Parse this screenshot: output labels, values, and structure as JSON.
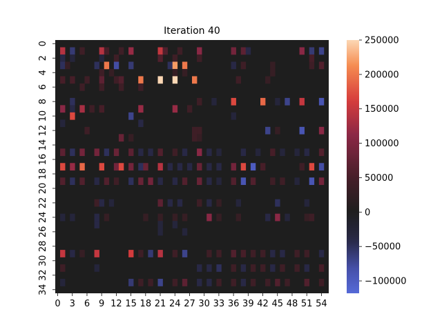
{
  "chart_data": {
    "type": "heatmap",
    "title": "Iteration 40",
    "n_rows": 35,
    "n_cols": 56,
    "xtick_labels": [
      "0",
      "3",
      "6",
      "9",
      "12",
      "15",
      "18",
      "21",
      "24",
      "27",
      "30",
      "33",
      "36",
      "39",
      "42",
      "45",
      "48",
      "51",
      "54"
    ],
    "xtick_indices": [
      0,
      3,
      6,
      9,
      12,
      15,
      18,
      21,
      24,
      27,
      30,
      33,
      36,
      39,
      42,
      45,
      48,
      51,
      54
    ],
    "ytick_labels": [
      "0",
      "2",
      "4",
      "6",
      "8",
      "10",
      "12",
      "14",
      "16",
      "18",
      "20",
      "22",
      "24",
      "26",
      "28",
      "30",
      "32",
      "34"
    ],
    "ytick_indices": [
      0,
      2,
      4,
      6,
      8,
      10,
      12,
      14,
      16,
      18,
      20,
      22,
      24,
      26,
      28,
      30,
      32,
      34
    ],
    "colorbar": {
      "min": -118000,
      "max": 250000,
      "center": 0,
      "colormap": "icefire",
      "tick_values": [
        -100000,
        -50000,
        0,
        50000,
        100000,
        150000,
        200000,
        250000
      ],
      "tick_labels": [
        "−100000",
        "−50000",
        "0",
        "50000",
        "100000",
        "150000",
        "200000",
        "250000"
      ]
    },
    "background_value": 0,
    "cells": [
      [
        1,
        1,
        140000
      ],
      [
        1,
        3,
        -60000
      ],
      [
        1,
        5,
        40000
      ],
      [
        1,
        9,
        140000
      ],
      [
        1,
        10,
        50000
      ],
      [
        1,
        13,
        40000
      ],
      [
        1,
        15,
        120000
      ],
      [
        1,
        21,
        150000
      ],
      [
        1,
        22,
        60000
      ],
      [
        1,
        25,
        40000
      ],
      [
        1,
        29,
        110000
      ],
      [
        1,
        36,
        90000
      ],
      [
        1,
        38,
        70000
      ],
      [
        1,
        39,
        -40000
      ],
      [
        1,
        50,
        110000
      ],
      [
        1,
        52,
        -60000
      ],
      [
        1,
        54,
        -70000
      ],
      [
        2,
        1,
        -40000
      ],
      [
        2,
        3,
        -30000
      ],
      [
        2,
        9,
        -30000
      ],
      [
        2,
        12,
        40000
      ],
      [
        2,
        21,
        60000
      ],
      [
        2,
        24,
        40000
      ],
      [
        2,
        29,
        40000
      ],
      [
        2,
        52,
        50000
      ],
      [
        3,
        1,
        -50000
      ],
      [
        3,
        2,
        30000
      ],
      [
        3,
        8,
        -50000
      ],
      [
        3,
        10,
        200000
      ],
      [
        3,
        12,
        -80000
      ],
      [
        3,
        15,
        -60000
      ],
      [
        3,
        23,
        -50000
      ],
      [
        3,
        24,
        220000
      ],
      [
        3,
        26,
        200000
      ],
      [
        3,
        36,
        -40000
      ],
      [
        3,
        38,
        40000
      ],
      [
        3,
        44,
        30000
      ],
      [
        3,
        52,
        40000
      ],
      [
        3,
        54,
        60000
      ],
      [
        4,
        9,
        40000
      ],
      [
        4,
        11,
        30000
      ],
      [
        4,
        24,
        30000
      ],
      [
        4,
        26,
        30000
      ],
      [
        4,
        44,
        30000
      ],
      [
        5,
        1,
        50000
      ],
      [
        5,
        3,
        50000
      ],
      [
        5,
        6,
        40000
      ],
      [
        5,
        9,
        70000
      ],
      [
        5,
        12,
        40000
      ],
      [
        5,
        13,
        60000
      ],
      [
        5,
        17,
        200000
      ],
      [
        5,
        21,
        250000
      ],
      [
        5,
        24,
        250000
      ],
      [
        5,
        28,
        200000
      ],
      [
        5,
        37,
        40000
      ],
      [
        5,
        43,
        30000
      ],
      [
        6,
        5,
        40000
      ],
      [
        6,
        9,
        40000
      ],
      [
        6,
        13,
        40000
      ],
      [
        6,
        17,
        40000
      ],
      [
        8,
        3,
        -50000
      ],
      [
        8,
        29,
        40000
      ],
      [
        8,
        32,
        -30000
      ],
      [
        8,
        36,
        170000
      ],
      [
        8,
        42,
        190000
      ],
      [
        8,
        45,
        -30000
      ],
      [
        8,
        47,
        -70000
      ],
      [
        8,
        50,
        150000
      ],
      [
        8,
        54,
        -90000
      ],
      [
        9,
        1,
        110000
      ],
      [
        9,
        3,
        -40000
      ],
      [
        9,
        5,
        130000
      ],
      [
        9,
        7,
        40000
      ],
      [
        9,
        9,
        50000
      ],
      [
        9,
        17,
        120000
      ],
      [
        9,
        24,
        120000
      ],
      [
        9,
        27,
        40000
      ],
      [
        10,
        3,
        170000
      ],
      [
        10,
        15,
        -70000
      ],
      [
        10,
        36,
        -30000
      ],
      [
        11,
        1,
        -30000
      ],
      [
        11,
        17,
        -40000
      ],
      [
        12,
        6,
        40000
      ],
      [
        12,
        28,
        40000
      ],
      [
        12,
        29,
        40000
      ],
      [
        12,
        43,
        -70000
      ],
      [
        12,
        45,
        30000
      ],
      [
        12,
        50,
        -90000
      ],
      [
        12,
        54,
        110000
      ],
      [
        13,
        13,
        80000
      ],
      [
        13,
        15,
        30000
      ],
      [
        13,
        28,
        40000
      ],
      [
        13,
        29,
        30000
      ],
      [
        15,
        1,
        70000
      ],
      [
        15,
        3,
        -50000
      ],
      [
        15,
        5,
        90000
      ],
      [
        15,
        8,
        90000
      ],
      [
        15,
        10,
        -50000
      ],
      [
        15,
        12,
        80000
      ],
      [
        15,
        15,
        70000
      ],
      [
        15,
        17,
        -40000
      ],
      [
        15,
        19,
        -40000
      ],
      [
        15,
        21,
        60000
      ],
      [
        15,
        24,
        40000
      ],
      [
        15,
        26,
        -40000
      ],
      [
        15,
        29,
        110000
      ],
      [
        15,
        31,
        -40000
      ],
      [
        15,
        33,
        -30000
      ],
      [
        15,
        38,
        -40000
      ],
      [
        15,
        41,
        -30000
      ],
      [
        15,
        44,
        50000
      ],
      [
        15,
        46,
        -30000
      ],
      [
        15,
        49,
        -30000
      ],
      [
        15,
        51,
        -40000
      ],
      [
        15,
        54,
        60000
      ],
      [
        17,
        1,
        170000
      ],
      [
        17,
        3,
        120000
      ],
      [
        17,
        5,
        190000
      ],
      [
        17,
        9,
        170000
      ],
      [
        17,
        12,
        90000
      ],
      [
        17,
        13,
        170000
      ],
      [
        17,
        15,
        90000
      ],
      [
        17,
        17,
        -50000
      ],
      [
        17,
        18,
        80000
      ],
      [
        17,
        21,
        140000
      ],
      [
        17,
        23,
        -40000
      ],
      [
        17,
        25,
        -40000
      ],
      [
        17,
        27,
        -40000
      ],
      [
        17,
        29,
        80000
      ],
      [
        17,
        31,
        -40000
      ],
      [
        17,
        33,
        -40000
      ],
      [
        17,
        36,
        90000
      ],
      [
        17,
        38,
        170000
      ],
      [
        17,
        40,
        -100000
      ],
      [
        17,
        42,
        50000
      ],
      [
        17,
        50,
        40000
      ],
      [
        17,
        52,
        170000
      ],
      [
        17,
        54,
        -80000
      ],
      [
        19,
        1,
        60000
      ],
      [
        19,
        3,
        -50000
      ],
      [
        19,
        5,
        60000
      ],
      [
        19,
        8,
        -40000
      ],
      [
        19,
        10,
        60000
      ],
      [
        19,
        12,
        40000
      ],
      [
        19,
        15,
        -50000
      ],
      [
        19,
        17,
        80000
      ],
      [
        19,
        19,
        90000
      ],
      [
        19,
        21,
        -40000
      ],
      [
        19,
        24,
        -40000
      ],
      [
        19,
        26,
        60000
      ],
      [
        19,
        29,
        80000
      ],
      [
        19,
        31,
        -40000
      ],
      [
        19,
        33,
        -30000
      ],
      [
        19,
        36,
        60000
      ],
      [
        19,
        38,
        -90000
      ],
      [
        19,
        40,
        60000
      ],
      [
        19,
        44,
        40000
      ],
      [
        19,
        46,
        40000
      ],
      [
        19,
        49,
        -30000
      ],
      [
        19,
        52,
        -90000
      ],
      [
        19,
        54,
        90000
      ],
      [
        22,
        8,
        40000
      ],
      [
        22,
        9,
        -40000
      ],
      [
        22,
        11,
        -30000
      ],
      [
        22,
        21,
        70000
      ],
      [
        22,
        23,
        -40000
      ],
      [
        22,
        25,
        -40000
      ],
      [
        22,
        29,
        40000
      ],
      [
        22,
        31,
        -40000
      ],
      [
        22,
        33,
        30000
      ],
      [
        22,
        37,
        -30000
      ],
      [
        22,
        45,
        -50000
      ],
      [
        22,
        51,
        -30000
      ],
      [
        24,
        1,
        -30000
      ],
      [
        24,
        3,
        -30000
      ],
      [
        24,
        8,
        -40000
      ],
      [
        24,
        10,
        30000
      ],
      [
        24,
        18,
        30000
      ],
      [
        24,
        21,
        30000
      ],
      [
        24,
        24,
        30000
      ],
      [
        24,
        26,
        30000
      ],
      [
        24,
        31,
        110000
      ],
      [
        24,
        33,
        30000
      ],
      [
        24,
        37,
        30000
      ],
      [
        24,
        43,
        -40000
      ],
      [
        24,
        45,
        110000
      ],
      [
        24,
        47,
        -30000
      ],
      [
        24,
        51,
        30000
      ],
      [
        24,
        52,
        40000
      ],
      [
        25,
        8,
        -40000
      ],
      [
        25,
        21,
        -30000
      ],
      [
        25,
        24,
        -30000
      ],
      [
        26,
        21,
        -30000
      ],
      [
        26,
        26,
        -30000
      ],
      [
        29,
        1,
        150000
      ],
      [
        29,
        3,
        -40000
      ],
      [
        29,
        5,
        30000
      ],
      [
        29,
        8,
        150000
      ],
      [
        29,
        15,
        160000
      ],
      [
        29,
        17,
        40000
      ],
      [
        29,
        19,
        -60000
      ],
      [
        29,
        21,
        140000
      ],
      [
        29,
        24,
        40000
      ],
      [
        29,
        26,
        -70000
      ],
      [
        29,
        31,
        40000
      ],
      [
        29,
        33,
        40000
      ],
      [
        29,
        36,
        60000
      ],
      [
        29,
        38,
        50000
      ],
      [
        29,
        40,
        40000
      ],
      [
        29,
        42,
        40000
      ],
      [
        29,
        44,
        -40000
      ],
      [
        29,
        46,
        -40000
      ],
      [
        29,
        49,
        40000
      ],
      [
        29,
        51,
        40000
      ],
      [
        29,
        54,
        -40000
      ],
      [
        31,
        1,
        40000
      ],
      [
        31,
        8,
        -30000
      ],
      [
        31,
        29,
        -40000
      ],
      [
        31,
        31,
        -40000
      ],
      [
        31,
        33,
        -50000
      ],
      [
        31,
        36,
        40000
      ],
      [
        31,
        38,
        -40000
      ],
      [
        31,
        40,
        40000
      ],
      [
        31,
        42,
        40000
      ],
      [
        31,
        44,
        -40000
      ],
      [
        31,
        46,
        40000
      ],
      [
        31,
        49,
        40000
      ],
      [
        31,
        51,
        -40000
      ],
      [
        31,
        54,
        50000
      ],
      [
        33,
        1,
        -30000
      ],
      [
        33,
        15,
        -60000
      ],
      [
        33,
        17,
        40000
      ],
      [
        33,
        19,
        40000
      ],
      [
        33,
        21,
        -70000
      ],
      [
        33,
        24,
        40000
      ],
      [
        33,
        26,
        70000
      ],
      [
        33,
        29,
        -40000
      ],
      [
        33,
        31,
        -40000
      ],
      [
        33,
        33,
        40000
      ],
      [
        33,
        36,
        40000
      ],
      [
        33,
        38,
        -40000
      ],
      [
        33,
        40,
        40000
      ],
      [
        33,
        43,
        40000
      ],
      [
        33,
        45,
        60000
      ],
      [
        33,
        47,
        40000
      ],
      [
        33,
        51,
        60000
      ],
      [
        33,
        54,
        40000
      ]
    ]
  }
}
